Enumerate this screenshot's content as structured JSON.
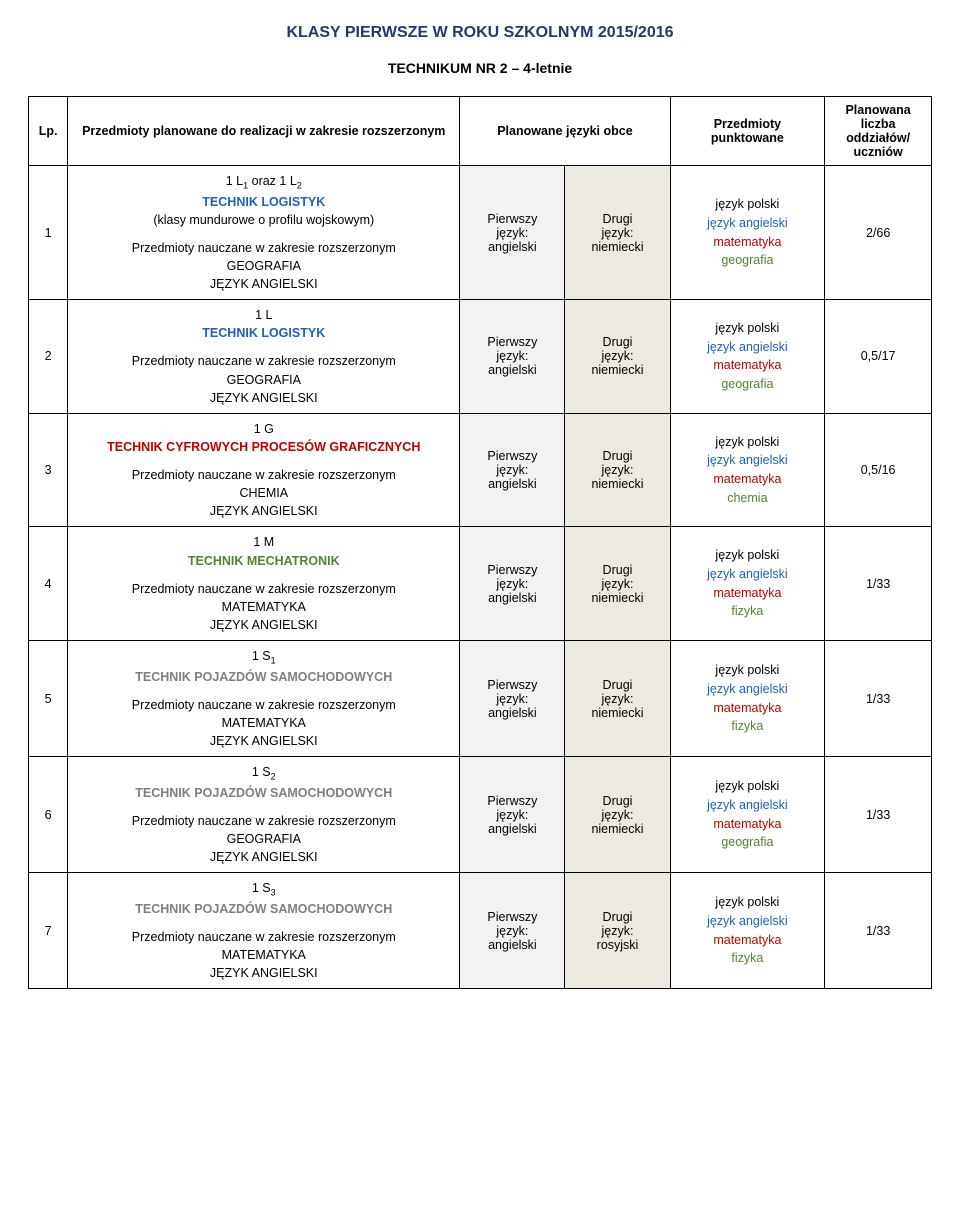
{
  "title": "KLASY PIERWSZE W ROKU SZKOLNYM 2015/2016",
  "subtitle": "TECHNIKUM NR 2 – 4-letnie",
  "headers": {
    "lp": "Lp.",
    "desc": "Przedmioty planowane do realizacji w zakresie rozszerzonym",
    "lang": "Planowane języki obce",
    "subj": "Przedmioty punktowane",
    "plan": "Planowana liczba oddziałów/ uczniów"
  },
  "lang_labels": {
    "first_label": "Pierwszy język:",
    "second_label": "Drugi język:"
  },
  "rows": [
    {
      "lp": "1",
      "code": "1 L₁ oraz 1 L₂",
      "title": "TECHNIK LOGISTYK",
      "title_color": "blue",
      "note": "(klasy mundurowe o profilu wojskowym)",
      "rozszer_line": "Przedmioty nauczane w zakresie rozszerzonym",
      "subj1": "GEOGRAFIA",
      "subj2": "JĘZYK ANGIELSKI",
      "first_lang": "angielski",
      "second_lang": "niemiecki",
      "subjects": [
        "język polski",
        "język angielski",
        "matematyka",
        "geografia"
      ],
      "subject_colors": [
        "",
        "blue",
        "red",
        "green"
      ],
      "plan": "2/66"
    },
    {
      "lp": "2",
      "code": "1 L",
      "title": "TECHNIK LOGISTYK",
      "title_color": "blue",
      "note": "",
      "rozszer_line": "Przedmioty nauczane w zakresie rozszerzonym",
      "subj1": "GEOGRAFIA",
      "subj2": "JĘZYK ANGIELSKI",
      "first_lang": "angielski",
      "second_lang": "niemiecki",
      "subjects": [
        "język polski",
        "język angielski",
        "matematyka",
        "geografia"
      ],
      "subject_colors": [
        "",
        "blue",
        "red",
        "green"
      ],
      "plan": "0,5/17"
    },
    {
      "lp": "3",
      "code": "1 G",
      "title": "TECHNIK CYFROWYCH PROCESÓW GRAFICZNYCH",
      "title_color": "red",
      "note": "",
      "rozszer_line": "Przedmioty nauczane w zakresie rozszerzonym",
      "subj1": "CHEMIA",
      "subj2": "JĘZYK ANGIELSKI",
      "first_lang": "angielski",
      "second_lang": "niemiecki",
      "subjects": [
        "język polski",
        "język angielski",
        "matematyka",
        "chemia"
      ],
      "subject_colors": [
        "",
        "blue",
        "red",
        "green"
      ],
      "plan": "0,5/16"
    },
    {
      "lp": "4",
      "code": "1 M",
      "title": "TECHNIK MECHATRONIK",
      "title_color": "green",
      "note": "",
      "rozszer_line": "Przedmioty nauczane w zakresie rozszerzonym",
      "subj1": "MATEMATYKA",
      "subj2": "JĘZYK ANGIELSKI",
      "first_lang": "angielski",
      "second_lang": "niemiecki",
      "subjects": [
        "język polski",
        "język angielski",
        "matematyka",
        "fizyka"
      ],
      "subject_colors": [
        "",
        "blue",
        "red",
        "green"
      ],
      "plan": "1/33"
    },
    {
      "lp": "5",
      "code": "1 S₁",
      "title": "TECHNIK POJAZDÓW SAMOCHODOWYCH",
      "title_color": "gray",
      "note": "",
      "rozszer_line": "Przedmioty nauczane w zakresie rozszerzonym",
      "subj1": "MATEMATYKA",
      "subj2": "JĘZYK ANGIELSKI",
      "first_lang": "angielski",
      "second_lang": "niemiecki",
      "subjects": [
        "język polski",
        "język angielski",
        "matematyka",
        "fizyka"
      ],
      "subject_colors": [
        "",
        "blue",
        "red",
        "green"
      ],
      "plan": "1/33"
    },
    {
      "lp": "6",
      "code": "1 S₂",
      "title": "TECHNIK POJAZDÓW SAMOCHODOWYCH",
      "title_color": "gray",
      "note": "",
      "rozszer_line": "Przedmioty nauczane w zakresie rozszerzonym",
      "subj1": "GEOGRAFIA",
      "subj2": "JĘZYK ANGIELSKI",
      "first_lang": "angielski",
      "second_lang": "niemiecki",
      "subjects": [
        "język polski",
        "język angielski",
        "matematyka",
        "geografia"
      ],
      "subject_colors": [
        "",
        "blue",
        "red",
        "green"
      ],
      "plan": "1/33"
    },
    {
      "lp": "7",
      "code": "1 S₃",
      "title": "TECHNIK POJAZDÓW SAMOCHODOWYCH",
      "title_color": "gray",
      "note": "",
      "rozszer_line": "Przedmioty nauczane w zakresie rozszerzonym",
      "subj1": "MATEMATYKA",
      "subj2": "JĘZYK ANGIELSKI",
      "first_lang": "angielski",
      "second_lang": "rosyjski",
      "subjects": [
        "język polski",
        "język angielski",
        "matematyka",
        "fizyka"
      ],
      "subject_colors": [
        "",
        "blue",
        "red",
        "green"
      ],
      "plan": "1/33"
    }
  ]
}
